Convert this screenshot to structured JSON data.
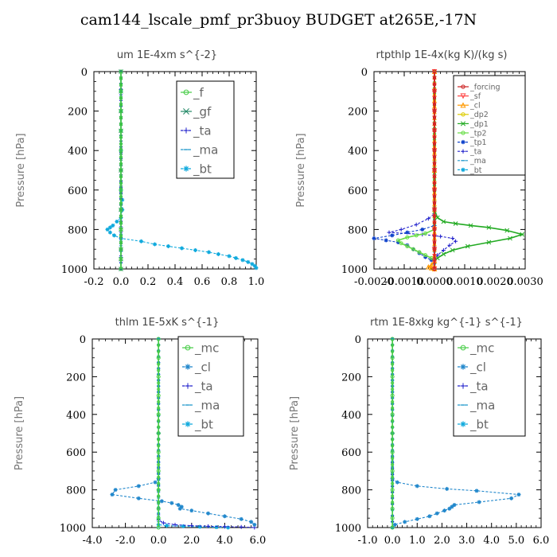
{
  "title": "cam144_lscale_pmf_pr3buoy  BUDGET at265E,-17N",
  "chart_data": [
    {
      "type": "line",
      "title": "um   1E-4xm s^{-2}",
      "ylabel": "Pressure [hPa]",
      "xlim": [
        -0.2,
        1.0
      ],
      "ylim": [
        1000,
        0
      ],
      "x_ticks": [
        -0.2,
        0.0,
        0.2,
        0.4,
        0.6,
        0.8,
        1.0
      ],
      "x_tick_labels": [
        "-0.2",
        "0.0",
        "0.2",
        "0.4",
        "0.6",
        "0.8",
        "1.0"
      ],
      "y_ticks": [
        0,
        200,
        400,
        600,
        800,
        1000
      ],
      "y_tick_labels": [
        "0",
        "200",
        "400",
        "600",
        "800",
        "1000"
      ],
      "legend_position": "top-right",
      "legend_font_size": "large",
      "series": [
        {
          "name": "_f",
          "color": "#44cc44",
          "marker": "o",
          "dashed": false,
          "x": [
            0.0,
            0.0,
            0.0,
            0.0,
            0.0,
            0.0,
            0.0,
            0.0,
            0.0,
            0.0,
            0.0,
            0.0
          ],
          "y": [
            0,
            100,
            200,
            300,
            400,
            500,
            600,
            700,
            800,
            900,
            950,
            1000
          ]
        },
        {
          "name": "_gf",
          "color": "#228866",
          "marker": "x",
          "dashed": false,
          "x": [
            0.0,
            0.0,
            0.0,
            0.0,
            0.0,
            0.0,
            0.0,
            0.0,
            0.0,
            0.0
          ],
          "y": [
            0,
            100,
            200,
            300,
            500,
            700,
            800,
            900,
            950,
            1000
          ]
        },
        {
          "name": "_ta",
          "color": "#2222cc",
          "marker": "+",
          "dashed": true,
          "x": [
            0.0,
            0.0,
            0.0,
            0.0
          ],
          "y": [
            0,
            500,
            900,
            1000
          ]
        },
        {
          "name": "_ma",
          "color": "#2299cc",
          "marker": "-",
          "dashed": true,
          "x": [
            0.0,
            0.0,
            0.0
          ],
          "y": [
            0,
            500,
            1000
          ]
        },
        {
          "name": "_bt",
          "color": "#11aadd",
          "marker": "*",
          "dashed": true,
          "x": [
            0.0,
            0.0,
            0.0,
            0.0,
            0.0,
            0.0,
            0.0,
            0.01,
            0.01,
            0.0,
            -0.03,
            -0.06,
            -0.08,
            -0.1,
            -0.08,
            -0.05,
            0.0,
            0.15,
            0.25,
            0.35,
            0.45,
            0.55,
            0.65,
            0.72,
            0.8,
            0.85,
            0.9,
            0.94,
            0.97,
            0.99,
            1.0
          ],
          "y": [
            0,
            100,
            200,
            300,
            400,
            500,
            600,
            650,
            700,
            740,
            760,
            780,
            790,
            800,
            815,
            830,
            845,
            860,
            875,
            885,
            895,
            905,
            915,
            925,
            935,
            945,
            955,
            965,
            975,
            985,
            995
          ]
        }
      ]
    },
    {
      "type": "line",
      "title": "rtpthlp   1E-4x(kg K)/(kg s)",
      "ylabel": "Pressure [hPa]",
      "xlim": [
        -0.002,
        0.003
      ],
      "ylim": [
        1000,
        0
      ],
      "x_ticks": [
        -0.002,
        -0.001,
        0.0,
        0.001,
        0.002,
        0.003
      ],
      "x_tick_labels": [
        "-0.0020",
        "-0.0010",
        "0.0000",
        "0.0010",
        "0.0020",
        "0.0030"
      ],
      "y_ticks": [
        0,
        200,
        400,
        600,
        800,
        1000
      ],
      "y_tick_labels": [
        "0",
        "200",
        "400",
        "600",
        "800",
        "1000"
      ],
      "legend_position": "top-right",
      "legend_font_size": "small",
      "series": [
        {
          "name": "_forcing",
          "color": "#cc2222",
          "marker": "o",
          "dashed": false,
          "x": [
            0.0,
            0.0,
            0.0,
            0.0,
            0.0,
            0.0,
            0.0,
            0.0,
            0.0,
            0.0,
            0.0,
            0.0
          ],
          "y": [
            0,
            100,
            200,
            300,
            400,
            500,
            600,
            700,
            800,
            900,
            950,
            1000
          ]
        },
        {
          "name": "_sf",
          "color": "#ff4444",
          "marker": "v",
          "dashed": false,
          "x": [
            0.0,
            0.0,
            0.0,
            0.0,
            0.0,
            0.0,
            0.0,
            0.0,
            0.0,
            0.0,
            0.0
          ],
          "y": [
            0,
            100,
            200,
            300,
            400,
            500,
            600,
            700,
            800,
            900,
            1000
          ]
        },
        {
          "name": "_cl",
          "color": "#ff9900",
          "marker": "^",
          "dashed": false,
          "x": [
            0.0,
            0.0,
            0.0,
            -0.0001,
            -0.0002,
            -0.0001,
            0.0
          ],
          "y": [
            0,
            500,
            960,
            980,
            990,
            995,
            1000
          ]
        },
        {
          "name": "_dp2",
          "color": "#ddcc00",
          "marker": "o",
          "dashed": false,
          "x": [
            0.0,
            0.0,
            0.0,
            0.0
          ],
          "y": [
            0,
            500,
            990,
            1000
          ]
        },
        {
          "name": "_dp1",
          "color": "#22aa22",
          "marker": "x",
          "dashed": false,
          "x": [
            0.0,
            0.0,
            0.0,
            0.0001,
            0.0003,
            0.0007,
            0.0012,
            0.0018,
            0.0024,
            0.0029,
            0.0025,
            0.0018,
            0.0011,
            0.0006,
            0.0003,
            0.0001,
            0.0
          ],
          "y": [
            0,
            500,
            700,
            740,
            760,
            770,
            780,
            790,
            805,
            825,
            845,
            865,
            885,
            905,
            925,
            945,
            960
          ]
        },
        {
          "name": "_tp2",
          "color": "#66dd44",
          "marker": "o",
          "dashed": false,
          "x": [
            0.0,
            0.0,
            -0.0003,
            -0.0006,
            -0.0009,
            -0.0012,
            -0.0011,
            -0.0009,
            -0.0007,
            -0.0005,
            -0.0003,
            -0.0001,
            0.0
          ],
          "y": [
            0,
            800,
            820,
            830,
            840,
            855,
            870,
            885,
            900,
            915,
            930,
            945,
            960
          ]
        },
        {
          "name": "_tp1",
          "color": "#1144cc",
          "marker": "*",
          "dashed": true,
          "x": [
            0.0,
            0.0,
            -0.0004,
            -0.0009,
            -0.0014,
            -0.002,
            -0.0016,
            -0.0012,
            -0.0009,
            -0.0007,
            -0.0005,
            -0.0003,
            -0.0001,
            0.0
          ],
          "y": [
            0,
            780,
            800,
            815,
            830,
            845,
            855,
            865,
            880,
            900,
            920,
            940,
            955,
            970
          ]
        },
        {
          "name": "_ta",
          "color": "#2222cc",
          "marker": "+",
          "dashed": true,
          "x": [
            0.0,
            0.0,
            -0.0002,
            -0.0006,
            -0.0011,
            -0.0015,
            -0.0004,
            0.0002,
            0.0006,
            0.0007,
            0.0005,
            0.0003,
            0.0001,
            0.0
          ],
          "y": [
            0,
            720,
            745,
            775,
            800,
            815,
            825,
            835,
            845,
            860,
            880,
            905,
            930,
            960
          ]
        },
        {
          "name": "_ma",
          "color": "#2299cc",
          "marker": "-",
          "dashed": true,
          "x": [
            0.0,
            0.0,
            0.0
          ],
          "y": [
            0,
            500,
            1000
          ]
        },
        {
          "name": "_bt",
          "color": "#11aadd",
          "marker": "*",
          "dashed": true,
          "x": [
            0.0,
            0.0,
            0.0
          ],
          "y": [
            0,
            500,
            1000
          ]
        }
      ]
    },
    {
      "type": "line",
      "title": "thlm   1E-5xK  s^{-1}",
      "ylabel": "Pressure [hPa]",
      "xlim": [
        -4.0,
        6.0
      ],
      "ylim": [
        1000,
        0
      ],
      "x_ticks": [
        -4.0,
        -2.0,
        0.0,
        2.0,
        4.0,
        6.0
      ],
      "x_tick_labels": [
        "-4.0",
        "-2.0",
        "0.0",
        "2.0",
        "4.0",
        "6.0"
      ],
      "y_ticks": [
        0,
        200,
        400,
        600,
        800,
        1000
      ],
      "y_tick_labels": [
        "0",
        "200",
        "400",
        "600",
        "800",
        "1000"
      ],
      "legend_position": "top-right",
      "legend_font_size": "large",
      "series": [
        {
          "name": "_mc",
          "color": "#44cc44",
          "marker": "o",
          "dashed": false,
          "x": [
            0.0,
            0.0,
            0.0,
            0.0,
            0.0,
            0.0,
            0.0,
            0.0,
            0.0,
            0.0,
            0.0,
            0.0
          ],
          "y": [
            0,
            100,
            200,
            300,
            400,
            500,
            600,
            700,
            800,
            900,
            950,
            1000
          ]
        },
        {
          "name": "_cl",
          "color": "#2288cc",
          "marker": "*",
          "dashed": true,
          "x": [
            0.0,
            0.0,
            0.0,
            -0.2,
            -1.2,
            -2.6,
            -2.8,
            -1.2,
            0.2,
            0.8,
            1.2,
            1.4,
            1.3,
            2.0,
            3.0,
            4.0,
            5.0,
            5.6,
            5.8
          ],
          "y": [
            0,
            500,
            740,
            760,
            780,
            800,
            825,
            845,
            860,
            870,
            880,
            890,
            900,
            910,
            925,
            940,
            955,
            970,
            985
          ]
        },
        {
          "name": "_ta",
          "color": "#2222cc",
          "marker": "+",
          "dashed": true,
          "x": [
            0.0,
            0.0,
            0.0,
            0.3,
            1.0,
            2.0,
            3.0,
            4.0,
            5.0,
            5.8
          ],
          "y": [
            0,
            500,
            960,
            975,
            985,
            990,
            993,
            995,
            997,
            1000
          ]
        },
        {
          "name": "_ma",
          "color": "#2299cc",
          "marker": "-",
          "dashed": true,
          "x": [
            0.0,
            0.0,
            0.0
          ],
          "y": [
            0,
            500,
            1000
          ]
        },
        {
          "name": "_bt",
          "color": "#11aadd",
          "marker": "*",
          "dashed": true,
          "x": [
            0.0,
            0.0,
            0.0,
            0.5,
            1.5,
            2.5,
            3.5,
            4.2
          ],
          "y": [
            0,
            500,
            985,
            990,
            993,
            996,
            998,
            1000
          ]
        }
      ]
    },
    {
      "type": "line",
      "title": "rtm   1E-8xkg  kg^{-1} s^{-1}",
      "ylabel": "Pressure [hPa]",
      "xlim": [
        -1.0,
        6.0
      ],
      "ylim": [
        1000,
        0
      ],
      "x_ticks": [
        -1.0,
        0.0,
        1.0,
        2.0,
        3.0,
        4.0,
        5.0,
        6.0
      ],
      "x_tick_labels": [
        "-1.0",
        "0.0",
        "1.0",
        "2.0",
        "3.0",
        "4.0",
        "5.0",
        "6.0"
      ],
      "y_ticks": [
        0,
        200,
        400,
        600,
        800,
        1000
      ],
      "y_tick_labels": [
        "0",
        "200",
        "400",
        "600",
        "800",
        "1000"
      ],
      "legend_position": "top-right",
      "legend_font_size": "large",
      "series": [
        {
          "name": "_mc",
          "color": "#44cc44",
          "marker": "o",
          "dashed": false,
          "x": [
            0.0,
            0.0,
            0.0,
            0.0,
            0.0,
            0.0,
            0.0,
            0.0,
            0.0,
            0.0,
            0.0,
            0.0
          ],
          "y": [
            0,
            100,
            200,
            300,
            400,
            500,
            600,
            700,
            800,
            900,
            950,
            1000
          ]
        },
        {
          "name": "_cl",
          "color": "#2288cc",
          "marker": "*",
          "dashed": true,
          "x": [
            0.0,
            0.0,
            0.0,
            0.2,
            1.0,
            2.2,
            3.4,
            5.1,
            4.8,
            3.5,
            2.5,
            2.4,
            2.3,
            2.1,
            1.8,
            1.5,
            1.0,
            0.5,
            0.1,
            0.0
          ],
          "y": [
            0,
            500,
            740,
            760,
            780,
            795,
            805,
            825,
            845,
            865,
            880,
            890,
            900,
            910,
            925,
            940,
            955,
            970,
            985,
            1000
          ]
        },
        {
          "name": "_ta",
          "color": "#2222cc",
          "marker": "+",
          "dashed": true,
          "x": [
            0.0,
            0.0,
            0.0
          ],
          "y": [
            0,
            500,
            1000
          ]
        },
        {
          "name": "_ma",
          "color": "#2299cc",
          "marker": "-",
          "dashed": true,
          "x": [
            0.0,
            0.0,
            0.0
          ],
          "y": [
            0,
            500,
            1000
          ]
        },
        {
          "name": "_bt",
          "color": "#11aadd",
          "marker": "*",
          "dashed": true,
          "x": [
            0.0,
            0.0,
            0.0
          ],
          "y": [
            0,
            500,
            1000
          ]
        }
      ]
    }
  ]
}
